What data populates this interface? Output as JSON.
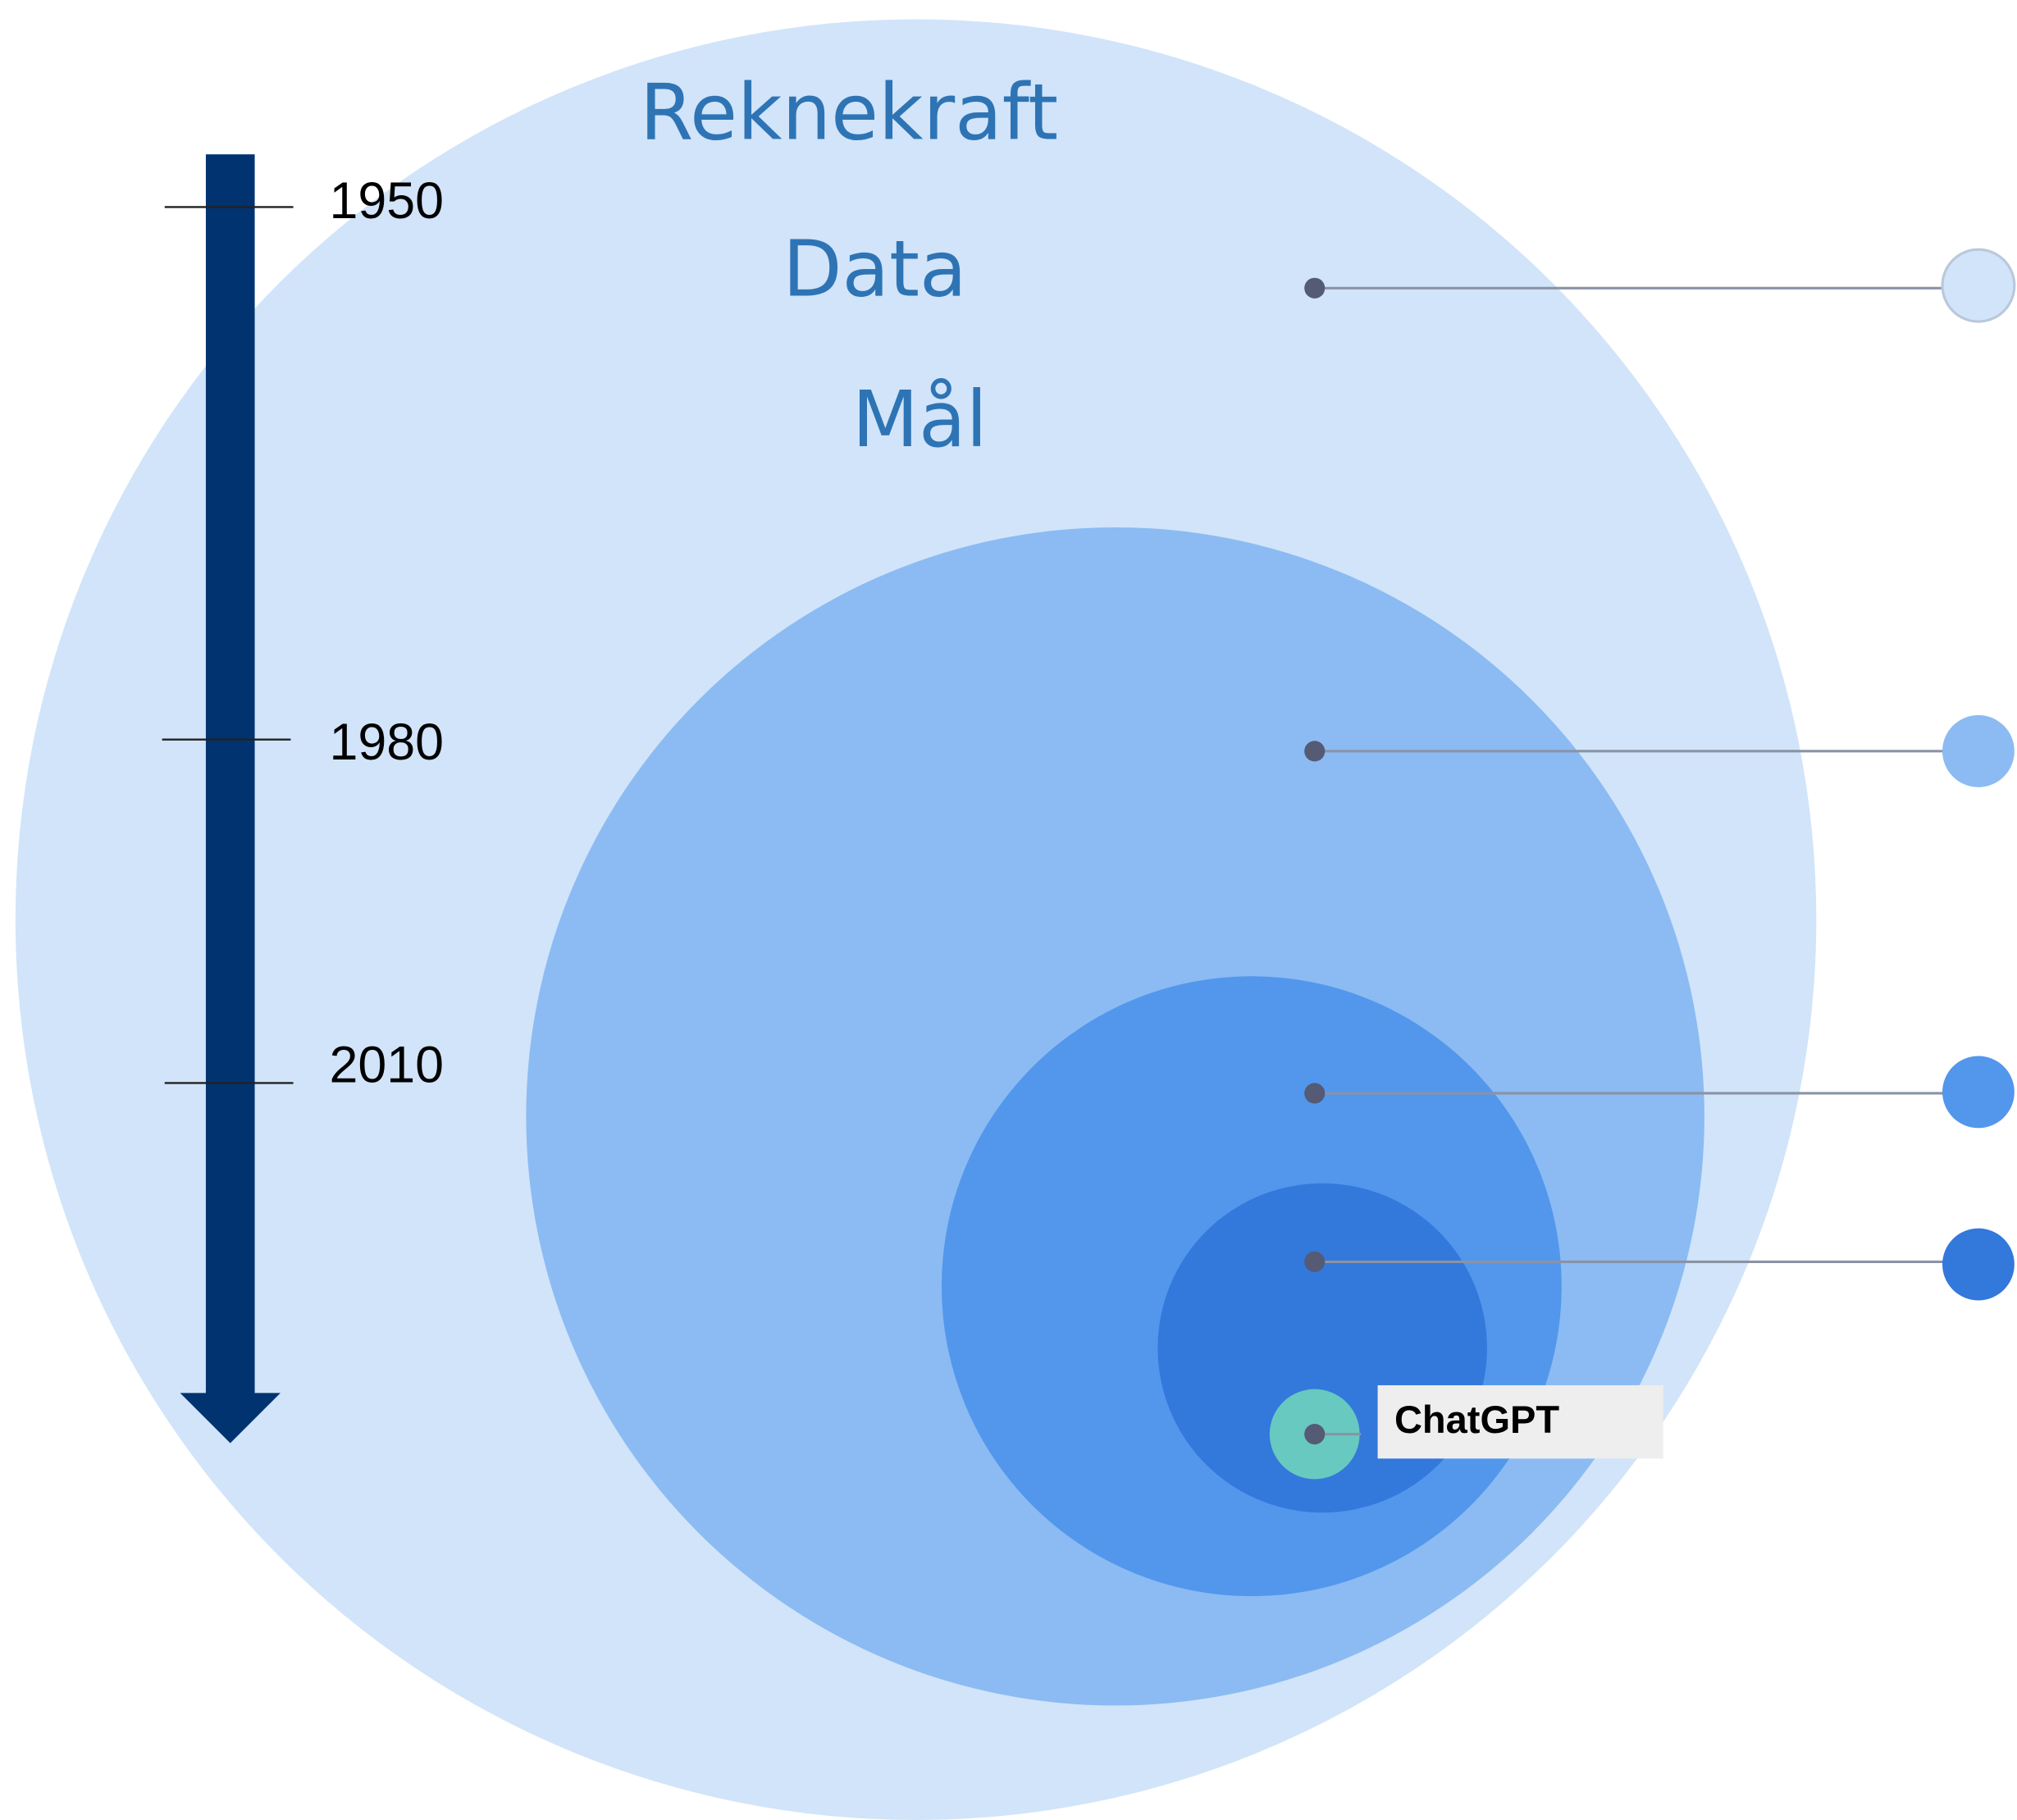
{
  "labels": [
    "Reknekraft",
    "Data",
    "Mål"
  ],
  "timeline": [
    "1950",
    "1980",
    "2010"
  ],
  "callout": "ChatGPT"
}
